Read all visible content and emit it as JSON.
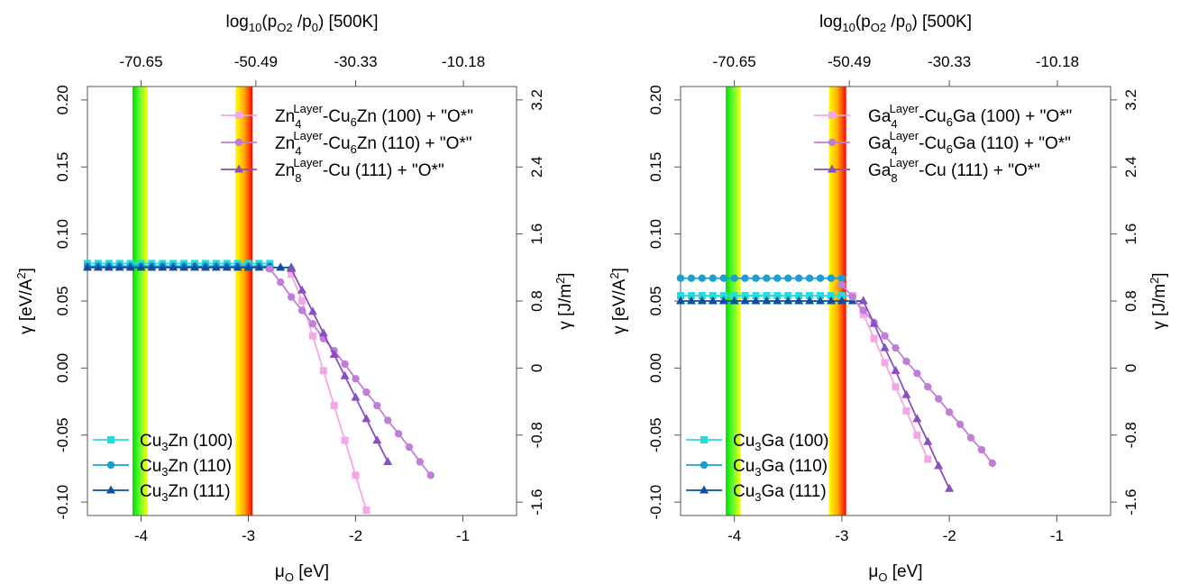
{
  "chart_data": [
    {
      "type": "line",
      "title": "",
      "xlabel": "μO [eV]",
      "xlabel_main": "μ",
      "xlabel_sub": "O",
      "xlabel_unit": " [eV]",
      "ylabel": "γ [eV/A2]",
      "ylabel_main": "γ [eV/A",
      "ylabel_sup": "2",
      "ylabel_end": "]",
      "ylabel_right": "γ [J/m2]",
      "ylabel_right_main": "γ [J/m",
      "ylabel_right_sup": "2",
      "ylabel_right_end": "]",
      "top_axis_label": "log10(pO2 /p0) [500K]",
      "top_label_parts": [
        "log",
        "10",
        "(p",
        "O2",
        " /p",
        "0",
        ") [500K]"
      ],
      "xlim": [
        -4.5,
        -0.5
      ],
      "ylim": [
        -0.11,
        0.21
      ],
      "x_ticks": [
        -4,
        -3,
        -2,
        -1
      ],
      "x_tick_labels": [
        "-4",
        "-3",
        "-2",
        "-1"
      ],
      "y_ticks": [
        -0.1,
        -0.05,
        0.0,
        0.05,
        0.1,
        0.15,
        0.2
      ],
      "y_tick_labels": [
        "-0.10",
        "-0.05",
        "0.00",
        "0.05",
        "0.10",
        "0.15",
        "0.20"
      ],
      "top_ticks": [
        -4.0,
        -2.93,
        -2.0,
        -0.995
      ],
      "top_tick_labels": [
        "-70.65",
        "-50.49",
        "-30.33",
        "-10.18"
      ],
      "right_ticks": [
        -0.1,
        -0.05,
        0.0,
        0.05,
        0.1,
        0.15,
        0.2
      ],
      "right_tick_labels": [
        "-1.6",
        "-0.8",
        "0",
        "0.8",
        "1.6",
        "2.4",
        "3.2"
      ],
      "bands": [
        {
          "x0": -4.08,
          "x1": -3.94,
          "colors": [
            "#00dd00",
            "#66ff33",
            "#ffff00"
          ]
        },
        {
          "x0": -3.12,
          "x1": -2.96,
          "colors": [
            "#ffff00",
            "#ffaa00",
            "#ff0000"
          ]
        }
      ],
      "series": [
        {
          "name": "Cu3Zn (100)",
          "label_main": "Cu",
          "label_sub": "3",
          "label_rest": "Zn (100)",
          "color": "#22dddd",
          "marker": "square",
          "x": [
            -4.5,
            -4.4,
            -4.3,
            -4.2,
            -4.1,
            -4.0,
            -3.9,
            -3.8,
            -3.7,
            -3.6,
            -3.5,
            -3.4,
            -3.3,
            -3.2,
            -3.1,
            -3.0,
            -2.9,
            -2.8
          ],
          "y": [
            0.078,
            0.078,
            0.078,
            0.078,
            0.078,
            0.078,
            0.078,
            0.078,
            0.078,
            0.078,
            0.078,
            0.078,
            0.078,
            0.078,
            0.078,
            0.078,
            0.078,
            0.078
          ]
        },
        {
          "name": "Cu3Zn (110)",
          "label_main": "Cu",
          "label_sub": "3",
          "label_rest": "Zn (110)",
          "color": "#1aa0d0",
          "marker": "circle",
          "x": [
            -4.5,
            -4.4,
            -4.3,
            -4.2,
            -4.1,
            -4.0,
            -3.9,
            -3.8,
            -3.7,
            -3.6,
            -3.5,
            -3.4,
            -3.3,
            -3.2,
            -3.1,
            -3.0,
            -2.9,
            -2.8
          ],
          "y": [
            0.076,
            0.076,
            0.076,
            0.076,
            0.076,
            0.076,
            0.076,
            0.076,
            0.076,
            0.076,
            0.076,
            0.076,
            0.076,
            0.076,
            0.076,
            0.076,
            0.076,
            0.076
          ]
        },
        {
          "name": "Cu3Zn (111)",
          "label_main": "Cu",
          "label_sub": "3",
          "label_rest": "Zn (111)",
          "color": "#0b4fa0",
          "marker": "triangle",
          "x": [
            -4.5,
            -4.4,
            -4.3,
            -4.2,
            -4.1,
            -4.0,
            -3.9,
            -3.8,
            -3.7,
            -3.6,
            -3.5,
            -3.4,
            -3.3,
            -3.2,
            -3.1,
            -3.0,
            -2.9,
            -2.8,
            -2.7,
            -2.6
          ],
          "y": [
            0.075,
            0.075,
            0.075,
            0.075,
            0.075,
            0.075,
            0.075,
            0.075,
            0.075,
            0.075,
            0.075,
            0.075,
            0.075,
            0.075,
            0.075,
            0.075,
            0.075,
            0.075,
            0.075,
            0.075
          ]
        },
        {
          "name": "Zn4Layer-Cu6Zn (100) + \"O*\"",
          "label_main": "Zn",
          "label_sub": "4",
          "label_sup": "Layer",
          "label_rest": "-Cu",
          "label_sub2": "6",
          "label_end": "Zn (100) + \"O*\"",
          "color": "#f5a6e6",
          "marker": "square",
          "x": [
            -2.6,
            -2.5,
            -2.4,
            -2.3,
            -2.2,
            -2.1,
            -2.0,
            -1.9
          ],
          "y": [
            0.07,
            0.05,
            0.024,
            -0.002,
            -0.028,
            -0.054,
            -0.08,
            -0.106
          ]
        },
        {
          "name": "Zn4Layer-Cu6Zn (110) + \"O*\"",
          "label_main": "Zn",
          "label_sub": "4",
          "label_sup": "Layer",
          "label_rest": "-Cu",
          "label_sub2": "6",
          "label_end": "Zn (110) + \"O*\"",
          "color": "#c07ed8",
          "marker": "circle",
          "x": [
            -2.8,
            -2.7,
            -2.6,
            -2.5,
            -2.4,
            -2.3,
            -2.2,
            -2.1,
            -2.0,
            -1.9,
            -1.8,
            -1.7,
            -1.6,
            -1.5,
            -1.4,
            -1.3
          ],
          "y": [
            0.074,
            0.064,
            0.053,
            0.043,
            0.033,
            0.022,
            0.013,
            0.003,
            -0.008,
            -0.018,
            -0.028,
            -0.039,
            -0.049,
            -0.059,
            -0.07,
            -0.08
          ]
        },
        {
          "name": "Zn8Layer-Cu (111) + \"O*\"",
          "label_main": "Zn",
          "label_sub": "8",
          "label_sup": "Layer",
          "label_rest": "-Cu (111) + \"O*\"",
          "label_sub2": "",
          "label_end": "",
          "color": "#8a4fbf",
          "marker": "triangle",
          "x": [
            -2.6,
            -2.5,
            -2.4,
            -2.3,
            -2.2,
            -2.1,
            -2.0,
            -1.9,
            -1.8,
            -1.7
          ],
          "y": [
            0.074,
            0.058,
            0.042,
            0.026,
            0.01,
            -0.006,
            -0.022,
            -0.038,
            -0.054,
            -0.07
          ]
        }
      ]
    },
    {
      "type": "line",
      "title": "",
      "xlabel": "μO [eV]",
      "xlabel_main": "μ",
      "xlabel_sub": "O",
      "xlabel_unit": " [eV]",
      "ylabel": "γ [eV/A2]",
      "ylabel_main": "γ [eV/A",
      "ylabel_sup": "2",
      "ylabel_end": "]",
      "ylabel_right": "γ [J/m2]",
      "ylabel_right_main": "γ [J/m",
      "ylabel_right_sup": "2",
      "ylabel_right_end": "]",
      "top_axis_label": "log10(pO2 /p0) [500K]",
      "top_label_parts": [
        "log",
        "10",
        "(p",
        "O2",
        " /p",
        "0",
        ") [500K]"
      ],
      "xlim": [
        -4.5,
        -0.5
      ],
      "ylim": [
        -0.11,
        0.21
      ],
      "x_ticks": [
        -4,
        -3,
        -2,
        -1
      ],
      "x_tick_labels": [
        "-4",
        "-3",
        "-2",
        "-1"
      ],
      "y_ticks": [
        -0.1,
        -0.05,
        0.0,
        0.05,
        0.1,
        0.15,
        0.2
      ],
      "y_tick_labels": [
        "-0.10",
        "-0.05",
        "0.00",
        "0.05",
        "0.10",
        "0.15",
        "0.20"
      ],
      "top_ticks": [
        -4.0,
        -2.93,
        -2.0,
        -0.995
      ],
      "top_tick_labels": [
        "-70.65",
        "-50.49",
        "-30.33",
        "-10.18"
      ],
      "right_ticks": [
        -0.1,
        -0.05,
        0.0,
        0.05,
        0.1,
        0.15,
        0.2
      ],
      "right_tick_labels": [
        "-1.6",
        "-0.8",
        "0",
        "0.8",
        "1.6",
        "2.4",
        "3.2"
      ],
      "bands": [
        {
          "x0": -4.08,
          "x1": -3.94,
          "colors": [
            "#00dd00",
            "#66ff33",
            "#ffff00"
          ]
        },
        {
          "x0": -3.12,
          "x1": -2.96,
          "colors": [
            "#ffff00",
            "#ffaa00",
            "#ff0000"
          ]
        }
      ],
      "series": [
        {
          "name": "Cu3Ga (100)",
          "label_main": "Cu",
          "label_sub": "3",
          "label_rest": "Ga (100)",
          "color": "#22dddd",
          "marker": "square",
          "x": [
            -4.5,
            -4.4,
            -4.3,
            -4.2,
            -4.1,
            -4.0,
            -3.9,
            -3.8,
            -3.7,
            -3.6,
            -3.5,
            -3.4,
            -3.3,
            -3.2,
            -3.1,
            -3.0,
            -2.9
          ],
          "y": [
            0.054,
            0.054,
            0.054,
            0.054,
            0.054,
            0.054,
            0.054,
            0.054,
            0.054,
            0.054,
            0.054,
            0.054,
            0.054,
            0.054,
            0.054,
            0.054,
            0.054
          ]
        },
        {
          "name": "Cu3Ga (110)",
          "label_main": "Cu",
          "label_sub": "3",
          "label_rest": "Ga (110)",
          "color": "#1aa0d0",
          "marker": "circle",
          "x": [
            -4.5,
            -4.4,
            -4.3,
            -4.2,
            -4.1,
            -4.0,
            -3.9,
            -3.8,
            -3.7,
            -3.6,
            -3.5,
            -3.4,
            -3.3,
            -3.2,
            -3.1,
            -3.0
          ],
          "y": [
            0.067,
            0.067,
            0.067,
            0.067,
            0.067,
            0.067,
            0.067,
            0.067,
            0.067,
            0.067,
            0.067,
            0.067,
            0.067,
            0.067,
            0.067,
            0.067
          ]
        },
        {
          "name": "Cu3Ga (111)",
          "label_main": "Cu",
          "label_sub": "3",
          "label_rest": "Ga (111)",
          "color": "#0b4fa0",
          "marker": "triangle",
          "x": [
            -4.5,
            -4.4,
            -4.3,
            -4.2,
            -4.1,
            -4.0,
            -3.9,
            -3.8,
            -3.7,
            -3.6,
            -3.5,
            -3.4,
            -3.3,
            -3.2,
            -3.1,
            -3.0,
            -2.9,
            -2.8
          ],
          "y": [
            0.05,
            0.05,
            0.05,
            0.05,
            0.05,
            0.05,
            0.05,
            0.05,
            0.05,
            0.05,
            0.05,
            0.05,
            0.05,
            0.05,
            0.05,
            0.05,
            0.05,
            0.05
          ]
        },
        {
          "name": "Ga4Layer-Cu6Ga (100) + \"O*\"",
          "label_main": "Ga",
          "label_sub": "4",
          "label_sup": "Layer",
          "label_rest": "-Cu",
          "label_sub2": "6",
          "label_end": "Ga (100) + \"O*\"",
          "color": "#f5a6e6",
          "marker": "square",
          "x": [
            -2.9,
            -2.8,
            -2.7,
            -2.6,
            -2.5,
            -2.4,
            -2.3,
            -2.2
          ],
          "y": [
            0.054,
            0.04,
            0.022,
            0.004,
            -0.014,
            -0.032,
            -0.05,
            -0.068
          ]
        },
        {
          "name": "Ga4Layer-Cu6Ga (110) + \"O*\"",
          "label_main": "Ga",
          "label_sub": "4",
          "label_sup": "Layer",
          "label_rest": "-Cu",
          "label_sub2": "6",
          "label_end": "Ga (110) + \"O*\"",
          "color": "#c07ed8",
          "marker": "circle",
          "x": [
            -3.0,
            -2.9,
            -2.8,
            -2.7,
            -2.6,
            -2.5,
            -2.4,
            -2.3,
            -2.2,
            -2.1,
            -2.0,
            -1.9,
            -1.8,
            -1.7,
            -1.6
          ],
          "y": [
            0.062,
            0.053,
            0.043,
            0.034,
            0.024,
            0.015,
            0.005,
            -0.004,
            -0.014,
            -0.023,
            -0.033,
            -0.042,
            -0.052,
            -0.061,
            -0.071
          ]
        },
        {
          "name": "Ga8Layer-Cu (111) + \"O*\"",
          "label_main": "Ga",
          "label_sub": "8",
          "label_sup": "Layer",
          "label_rest": "-Cu (111) + \"O*\"",
          "label_sub2": "",
          "label_end": "",
          "color": "#8a4fbf",
          "marker": "triangle",
          "x": [
            -2.8,
            -2.7,
            -2.6,
            -2.5,
            -2.4,
            -2.3,
            -2.2,
            -2.1,
            -2.0
          ],
          "y": [
            0.05,
            0.033,
            0.015,
            -0.002,
            -0.02,
            -0.038,
            -0.055,
            -0.073,
            -0.09
          ]
        }
      ]
    }
  ]
}
